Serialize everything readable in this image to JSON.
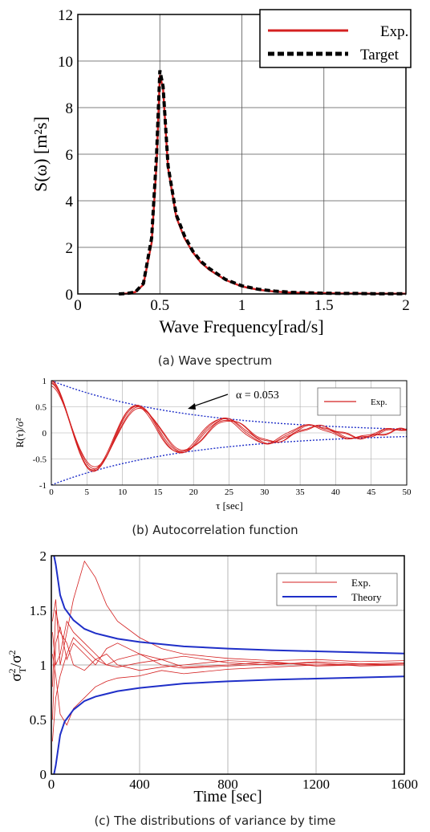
{
  "figure": {
    "captions": [
      "(a) Wave spectrum",
      "(b) Autocorrelation function",
      "(c) The distributions of variance by time"
    ]
  },
  "colors": {
    "exp": "#d42020",
    "target": "#000000",
    "bound": "#1f2fc8",
    "grid": "#555555"
  },
  "chart_data": [
    {
      "type": "line",
      "xlabel": "Wave Frequency[rad/s]",
      "ylabel": "S(ω) [m²s]",
      "xlim": [
        0,
        2
      ],
      "ylim": [
        0,
        12
      ],
      "xticks": [
        "0",
        "0.5",
        "1",
        "1.5",
        "2"
      ],
      "yticks": [
        "0",
        "2",
        "4",
        "6",
        "8",
        "10",
        "12"
      ],
      "grid": true,
      "legend": "top-right",
      "x": [
        0.25,
        0.3,
        0.35,
        0.4,
        0.45,
        0.48,
        0.5,
        0.52,
        0.55,
        0.6,
        0.65,
        0.7,
        0.75,
        0.8,
        0.9,
        1.0,
        1.1,
        1.2,
        1.3,
        1.4,
        1.5,
        1.6,
        1.7,
        1.8,
        1.9,
        2.0
      ],
      "series": [
        {
          "name": "Exp.",
          "values": [
            0.0,
            0.02,
            0.08,
            0.4,
            2.2,
            5.6,
            9.4,
            8.8,
            5.4,
            3.3,
            2.4,
            1.8,
            1.35,
            1.05,
            0.6,
            0.32,
            0.18,
            0.1,
            0.06,
            0.04,
            0.03,
            0.02,
            0.02,
            0.01,
            0.01,
            0.01
          ]
        },
        {
          "name": "Target",
          "values": [
            0.0,
            0.02,
            0.08,
            0.45,
            2.4,
            6.0,
            9.6,
            8.9,
            5.5,
            3.4,
            2.5,
            1.85,
            1.4,
            1.1,
            0.62,
            0.35,
            0.2,
            0.12,
            0.07,
            0.05,
            0.03,
            0.02,
            0.02,
            0.01,
            0.01,
            0.01
          ]
        }
      ]
    },
    {
      "type": "line",
      "xlabel": "τ [sec]",
      "ylabel": "R(τ)/σ²",
      "xlim": [
        0,
        50
      ],
      "ylim": [
        -1,
        1
      ],
      "xticks": [
        "0",
        "5",
        "10",
        "15",
        "20",
        "25",
        "30",
        "35",
        "40",
        "45",
        "50"
      ],
      "yticks": [
        "-1",
        "-0.5",
        "0",
        "0.5",
        "1"
      ],
      "grid": true,
      "legend": "top-right",
      "annotation": "α = 0.053",
      "exp_series": [
        {
          "name": "Exp.",
          "omega": 0.508,
          "scale": 1.0
        },
        {
          "name": "Exp.",
          "omega": 0.502,
          "scale": 0.95
        },
        {
          "name": "Exp.",
          "omega": 0.514,
          "scale": 1.02
        },
        {
          "name": "Exp.",
          "omega": 0.498,
          "scale": 0.9
        },
        {
          "name": "Exp.",
          "omega": 0.52,
          "scale": 0.97
        }
      ],
      "envelope_alpha": 0.053
    },
    {
      "type": "line",
      "xlabel": "Time [sec]",
      "ylabel": "σ²T/σ²",
      "xlim": [
        0,
        1600
      ],
      "ylim": [
        0,
        2
      ],
      "xticks": [
        "0",
        "400",
        "800",
        "1200",
        "1600"
      ],
      "yticks": [
        "0",
        "0.5",
        "1",
        "1.5",
        "2"
      ],
      "grid": true,
      "legend": "top-right",
      "legend_entries": [
        "Exp.",
        "Theory"
      ],
      "theory_upper": {
        "t": [
          12,
          20,
          40,
          60,
          100,
          150,
          200,
          300,
          400,
          600,
          800,
          1000,
          1200,
          1400,
          1600
        ],
        "values": [
          2.0,
          1.92,
          1.64,
          1.52,
          1.41,
          1.33,
          1.29,
          1.24,
          1.21,
          1.17,
          1.15,
          1.135,
          1.125,
          1.115,
          1.105
        ]
      },
      "theory_lower": {
        "t": [
          12,
          20,
          40,
          60,
          100,
          150,
          200,
          300,
          400,
          600,
          800,
          1000,
          1200,
          1400,
          1600
        ],
        "values": [
          0.0,
          0.08,
          0.36,
          0.48,
          0.59,
          0.67,
          0.71,
          0.76,
          0.79,
          0.83,
          0.85,
          0.865,
          0.875,
          0.885,
          0.895
        ]
      },
      "exp_traces": [
        {
          "t": [
            5,
            20,
            40,
            70,
            100,
            150,
            200,
            250,
            300,
            400,
            500,
            600,
            800,
            1000,
            1200,
            1400,
            1600
          ],
          "values": [
            1.4,
            1.6,
            1.0,
            1.3,
            1.6,
            1.95,
            1.8,
            1.55,
            1.4,
            1.25,
            1.15,
            1.1,
            1.06,
            1.04,
            1.05,
            1.03,
            1.04
          ]
        },
        {
          "t": [
            5,
            20,
            40,
            70,
            100,
            150,
            200,
            250,
            300,
            400,
            500,
            600,
            800,
            1000,
            1200,
            1400,
            1600
          ],
          "values": [
            0.5,
            1.2,
            1.35,
            1.05,
            1.2,
            1.1,
            1.0,
            1.15,
            1.2,
            1.1,
            1.05,
            1.08,
            1.02,
            1.0,
            1.03,
            1.01,
            1.02
          ]
        },
        {
          "t": [
            5,
            20,
            40,
            70,
            100,
            150,
            200,
            250,
            300,
            400,
            500,
            600,
            800,
            1000,
            1200,
            1400,
            1600
          ],
          "values": [
            0.3,
            0.7,
            0.9,
            1.1,
            1.25,
            1.15,
            1.05,
            1.0,
            0.98,
            1.02,
            1.05,
            0.98,
            1.0,
            1.03,
            0.99,
            1.0,
            1.01
          ]
        },
        {
          "t": [
            5,
            20,
            40,
            70,
            100,
            150,
            200,
            250,
            300,
            400,
            500,
            600,
            800,
            1000,
            1200,
            1400,
            1600
          ],
          "values": [
            1.1,
            0.9,
            0.55,
            0.45,
            0.6,
            0.7,
            0.8,
            0.85,
            0.88,
            0.9,
            0.95,
            0.92,
            0.96,
            0.98,
            1.0,
            1.0,
            1.0
          ]
        },
        {
          "t": [
            5,
            20,
            40,
            70,
            100,
            150,
            200,
            250,
            300,
            400,
            500,
            600,
            800,
            1000,
            1200,
            1400,
            1600
          ],
          "values": [
            0.8,
            1.5,
            1.3,
            1.2,
            1.0,
            0.95,
            1.05,
            1.1,
            1.0,
            0.95,
            0.98,
            1.0,
            1.04,
            1.02,
            1.0,
            1.01,
            1.0
          ]
        },
        {
          "t": [
            5,
            20,
            40,
            70,
            100,
            150,
            200,
            250,
            300,
            400,
            500,
            600,
            800,
            1000,
            1200,
            1400,
            1600
          ],
          "values": [
            1.3,
            1.0,
            1.1,
            1.4,
            1.3,
            1.2,
            1.1,
            1.0,
            1.05,
            1.1,
            1.0,
            0.97,
            0.99,
            1.01,
            1.02,
            0.99,
            1.0
          ]
        }
      ]
    }
  ]
}
